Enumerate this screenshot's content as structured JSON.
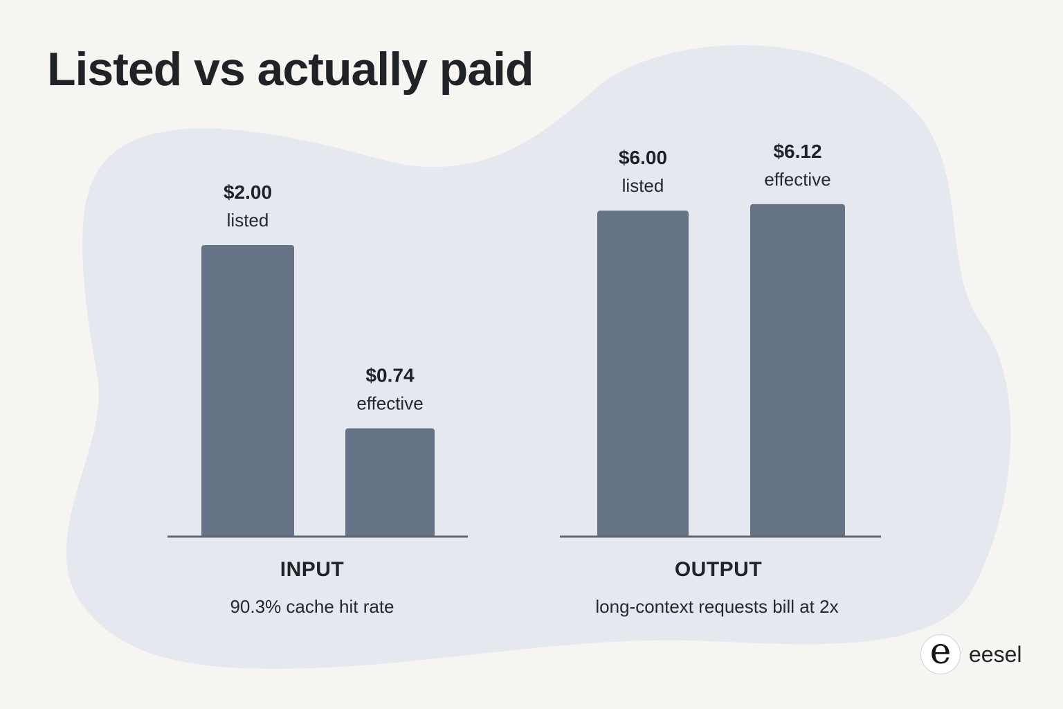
{
  "title": "Listed vs actually paid",
  "colors": {
    "background": "#f6f5f1",
    "blob": "#e5e8ef",
    "bar": "#667386",
    "axis": "#5e6672"
  },
  "chart_data": {
    "type": "bar",
    "title": "Listed vs actually paid",
    "unit": "$",
    "groups": [
      {
        "label": "INPUT",
        "note": "90.3% cache hit rate",
        "bars": [
          {
            "value": 2.0,
            "value_label": "$2.00",
            "sublabel": "listed"
          },
          {
            "value": 0.74,
            "value_label": "$0.74",
            "sublabel": "effective"
          }
        ]
      },
      {
        "label": "OUTPUT",
        "note": "long-context requests bill at 2x",
        "bars": [
          {
            "value": 6.0,
            "value_label": "$6.00",
            "sublabel": "listed"
          },
          {
            "value": 6.12,
            "value_label": "$6.12",
            "sublabel": "effective"
          }
        ]
      }
    ]
  },
  "logo": {
    "mark": "e",
    "text": "eesel"
  }
}
